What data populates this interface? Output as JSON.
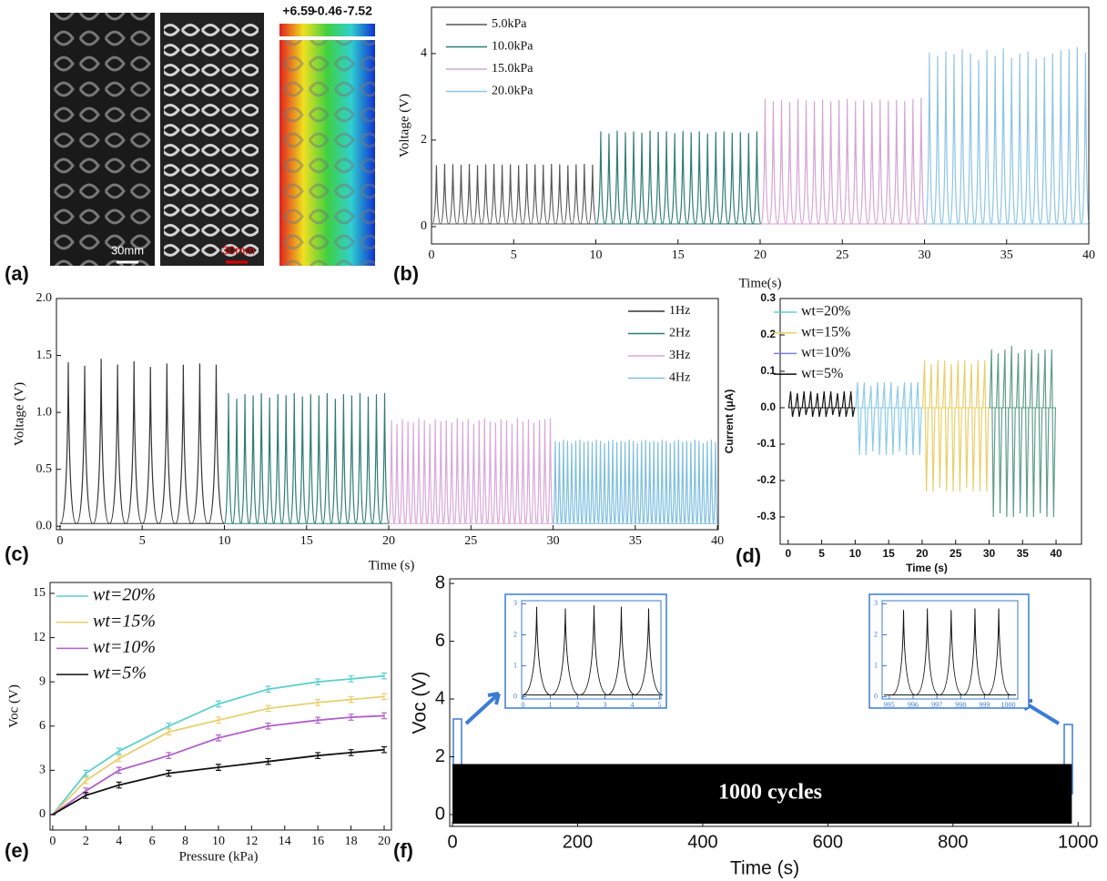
{
  "panel_a": {
    "label": "(a)",
    "scale_bars": [
      "30mm",
      "30mm"
    ],
    "colorbar_labels": [
      "+6.59",
      "-0.46",
      "-7.52"
    ]
  },
  "chart_data": [
    {
      "type": "spike",
      "panel_label": "(b)",
      "x_label": "Time(s)",
      "y_label": "Voltage (V)",
      "xlim": [
        0,
        40
      ],
      "ylim": [
        -0.4,
        5.07
      ],
      "xticks": [
        0,
        5,
        10,
        15,
        20,
        25,
        30,
        35,
        40
      ],
      "yticks": [
        0,
        2,
        4
      ],
      "series": [
        {
          "name": "5.0kPa",
          "color": "#555555",
          "x": [
            0.3,
            0.8,
            1.3,
            1.8,
            2.3,
            2.8,
            3.3,
            3.8,
            4.3,
            4.8,
            5.3,
            5.8,
            6.3,
            6.8,
            7.3,
            7.8,
            8.3,
            8.8,
            9.3,
            9.8
          ],
          "values": [
            1.42,
            1.45,
            1.44,
            1.43,
            1.45,
            1.42,
            1.44,
            1.45,
            1.43,
            1.44,
            1.42,
            1.45,
            1.44,
            1.43,
            1.45,
            1.44,
            1.42,
            1.44,
            1.45,
            1.43
          ]
        },
        {
          "name": "10.0kPa",
          "color": "#2e7d73",
          "x": [
            10.3,
            10.8,
            11.3,
            11.8,
            12.3,
            12.8,
            13.3,
            13.8,
            14.3,
            14.8,
            15.3,
            15.8,
            16.3,
            16.8,
            17.3,
            17.8,
            18.3,
            18.8,
            19.3,
            19.8
          ],
          "values": [
            2.2,
            2.15,
            2.22,
            2.18,
            2.2,
            2.17,
            2.22,
            2.19,
            2.2,
            2.16,
            2.21,
            2.18,
            2.2,
            2.15,
            2.19,
            2.2,
            2.17,
            2.18,
            2.16,
            2.2
          ]
        },
        {
          "name": "15.0kPa",
          "color": "#d4a5d4",
          "x": [
            20.3,
            20.8,
            21.3,
            21.8,
            22.3,
            22.8,
            23.3,
            23.8,
            24.3,
            24.8,
            25.3,
            25.8,
            26.3,
            26.8,
            27.3,
            27.8,
            28.3,
            28.8,
            29.3,
            29.8
          ],
          "values": [
            2.95,
            2.9,
            2.93,
            2.88,
            2.95,
            2.92,
            2.9,
            2.94,
            2.89,
            2.93,
            2.95,
            2.9,
            2.92,
            2.88,
            2.94,
            2.91,
            2.93,
            2.9,
            2.95,
            2.98
          ]
        },
        {
          "name": "20.0kPa",
          "color": "#8ec5e5",
          "x": [
            30.3,
            30.8,
            31.3,
            31.8,
            32.3,
            32.8,
            33.3,
            33.8,
            34.3,
            34.8,
            35.3,
            35.8,
            36.3,
            36.8,
            37.3,
            37.8,
            38.3,
            38.8,
            39.3,
            39.8
          ],
          "values": [
            4.02,
            3.95,
            4.05,
            3.98,
            4.1,
            4.0,
            3.85,
            4.08,
            3.95,
            4.12,
            3.9,
            4.0,
            4.05,
            3.88,
            3.92,
            4.0,
            4.08,
            4.1,
            4.15,
            4.02
          ]
        }
      ]
    },
    {
      "type": "spike",
      "panel_label": "(c)",
      "x_label": "Time (s)",
      "y_label": "Voltage (V)",
      "xlim": [
        -0.22,
        40.05
      ],
      "ylim": [
        -0.03,
        2.0
      ],
      "xticks": [
        0,
        5,
        10,
        15,
        20,
        25,
        30,
        35,
        40
      ],
      "yticks": [
        {
          "value": 0,
          "label": "0.0"
        },
        0.5,
        {
          "value": 1,
          "label": "1.0"
        },
        1.5,
        {
          "value": 2,
          "label": "2.0"
        }
      ],
      "series": [
        {
          "name": "1Hz",
          "color": "#333333",
          "x": [
            0.5,
            1.5,
            2.5,
            3.5,
            4.5,
            5.5,
            6.5,
            7.5,
            8.5,
            9.5
          ],
          "values": [
            1.44,
            1.41,
            1.47,
            1.42,
            1.45,
            1.4,
            1.43,
            1.42,
            1.43,
            1.42
          ]
        },
        {
          "name": "2Hz",
          "color": "#2e7d73",
          "x": [
            10.25,
            10.75,
            11.25,
            11.75,
            12.25,
            12.75,
            13.25,
            13.75,
            14.25,
            14.75,
            15.25,
            15.75,
            16.25,
            16.75,
            17.25,
            17.75,
            18.25,
            18.75,
            19.25,
            19.75
          ],
          "values": [
            1.17,
            1.12,
            1.16,
            1.15,
            1.17,
            1.13,
            1.16,
            1.15,
            1.17,
            1.14,
            1.16,
            1.15,
            1.17,
            1.12,
            1.16,
            1.15,
            1.17,
            1.14,
            1.16,
            1.17
          ]
        },
        {
          "name": "3Hz",
          "color": "#d9a8d9",
          "x": [
            20.17,
            20.5,
            20.83,
            21.17,
            21.5,
            21.83,
            22.17,
            22.5,
            22.83,
            23.17,
            23.5,
            23.83,
            24.17,
            24.5,
            24.83,
            25.17,
            25.5,
            25.83,
            26.17,
            26.5,
            26.83,
            27.17,
            27.5,
            27.83,
            28.17,
            28.5,
            28.83,
            29.17,
            29.5,
            29.83
          ],
          "values": [
            0.93,
            0.9,
            0.94,
            0.92,
            0.91,
            0.95,
            0.93,
            0.9,
            0.94,
            0.92,
            0.93,
            0.91,
            0.95,
            0.92,
            0.94,
            0.9,
            0.93,
            0.95,
            0.92,
            0.91,
            0.94,
            0.93,
            0.9,
            0.95,
            0.92,
            0.94,
            0.91,
            0.93,
            0.94,
            0.95
          ]
        },
        {
          "name": "4Hz",
          "color": "#7fbfe0",
          "x": [
            30.13,
            30.38,
            30.63,
            30.88,
            31.13,
            31.38,
            31.63,
            31.88,
            32.13,
            32.38,
            32.63,
            32.88,
            33.13,
            33.38,
            33.63,
            33.88,
            34.13,
            34.38,
            34.63,
            34.88,
            35.13,
            35.38,
            35.63,
            35.88,
            36.13,
            36.38,
            36.63,
            36.88,
            37.13,
            37.38,
            37.63,
            37.88,
            38.13,
            38.38,
            38.63,
            38.88,
            39.13,
            39.38,
            39.63,
            39.88
          ],
          "values": [
            0.75,
            0.74,
            0.76,
            0.75,
            0.73,
            0.75,
            0.76,
            0.74,
            0.75,
            0.74,
            0.76,
            0.75,
            0.73,
            0.75,
            0.76,
            0.74,
            0.75,
            0.74,
            0.76,
            0.75,
            0.73,
            0.75,
            0.76,
            0.74,
            0.75,
            0.74,
            0.76,
            0.75,
            0.73,
            0.75,
            0.76,
            0.74,
            0.75,
            0.74,
            0.76,
            0.75,
            0.73,
            0.75,
            0.76,
            0.74
          ]
        }
      ]
    },
    {
      "type": "spike",
      "panel_label": "(d)",
      "x_label": "Time (s)",
      "y_label": "Current (μA)",
      "xlim": [
        -1.2,
        43.8
      ],
      "ylim": [
        -0.375,
        0.3
      ],
      "xticks": [
        0,
        5,
        10,
        15,
        20,
        25,
        30,
        35,
        40
      ],
      "yticks": [
        -0.3,
        -0.2,
        -0.1,
        {
          "value": 0,
          "label": "0.0"
        },
        0.1,
        0.2,
        0.3
      ],
      "series": [
        {
          "name": "wt=20%",
          "color": "#5fd0d0",
          "plot_color": "#5f9e8a",
          "x": [
            30.5,
            31.5,
            32.5,
            33.5,
            34.5,
            35.5,
            36.5,
            37.5,
            38.5,
            39.5
          ],
          "values": [
            0.16,
            0.15,
            0.16,
            0.17,
            0.15,
            0.16,
            0.16,
            0.15,
            0.16,
            0.16
          ],
          "min_values": [
            -0.3,
            -0.29,
            -0.3,
            -0.3,
            -0.29,
            -0.3,
            -0.3,
            -0.29,
            -0.3,
            -0.3
          ]
        },
        {
          "name": "wt=15%",
          "color": "#e8cf6a",
          "plot_color": "#e8cf6a",
          "x": [
            20.5,
            21.5,
            22.5,
            23.5,
            24.5,
            25.5,
            26.5,
            27.5,
            28.5,
            29.5
          ],
          "values": [
            0.13,
            0.12,
            0.13,
            0.13,
            0.12,
            0.13,
            0.13,
            0.12,
            0.13,
            0.13
          ],
          "min_values": [
            -0.23,
            -0.23,
            -0.22,
            -0.23,
            -0.23,
            -0.23,
            -0.22,
            -0.23,
            -0.23,
            -0.23
          ]
        },
        {
          "name": "wt=10%",
          "color": "#8080d8",
          "plot_color": "#8ccbe8",
          "x": [
            10.5,
            11.5,
            12.5,
            13.5,
            14.5,
            15.5,
            16.5,
            17.5,
            18.5,
            19.5
          ],
          "values": [
            0.07,
            0.07,
            0.06,
            0.07,
            0.07,
            0.07,
            0.06,
            0.07,
            0.07,
            0.07
          ],
          "min_values": [
            -0.13,
            -0.13,
            -0.12,
            -0.13,
            -0.13,
            -0.13,
            -0.12,
            -0.13,
            -0.13,
            -0.13
          ]
        },
        {
          "name": "wt=5%",
          "color": "#111111",
          "plot_color": "#111111",
          "x": [
            0.5,
            1.5,
            2.5,
            3.5,
            4.5,
            5.5,
            6.5,
            7.5,
            8.5,
            9.5
          ],
          "values": [
            0.045,
            0.04,
            0.045,
            0.045,
            0.04,
            0.045,
            0.045,
            0.04,
            0.045,
            0.045
          ],
          "min_values": [
            -0.025,
            -0.025,
            -0.02,
            -0.025,
            -0.025,
            -0.025,
            -0.02,
            -0.025,
            -0.025,
            -0.025
          ]
        }
      ]
    },
    {
      "type": "line",
      "panel_label": "(e)",
      "x_label": "Pressure (kPa)",
      "y_label": "Voc (V)",
      "xlim": [
        -0.16,
        20.44
      ],
      "ylim": [
        -1.05,
        15.74
      ],
      "xticks": [
        0,
        2,
        4,
        6,
        8,
        10,
        12,
        14,
        16,
        18,
        20
      ],
      "yticks": [
        0,
        3,
        6,
        9,
        12,
        15
      ],
      "series": [
        {
          "name": "wt=20%",
          "color": "#5fcfcf",
          "x": [
            0,
            2,
            4,
            7,
            10,
            13,
            16,
            18,
            20
          ],
          "values": [
            0,
            2.8,
            4.3,
            6.0,
            7.5,
            8.5,
            9.0,
            9.2,
            9.4
          ],
          "errors": [
            0,
            0.2,
            0.2,
            0.2,
            0.2,
            0.2,
            0.2,
            0.2,
            0.2
          ]
        },
        {
          "name": "wt=15%",
          "color": "#e8d070",
          "x": [
            0,
            2,
            4,
            7,
            10,
            13,
            16,
            18,
            20
          ],
          "values": [
            0,
            2.3,
            3.8,
            5.6,
            6.4,
            7.2,
            7.6,
            7.8,
            8.0
          ],
          "errors": [
            0,
            0.2,
            0.2,
            0.2,
            0.2,
            0.2,
            0.2,
            0.2,
            0.2
          ]
        },
        {
          "name": "wt=10%",
          "color": "#b060c8",
          "x": [
            0,
            2,
            4,
            7,
            10,
            13,
            16,
            18,
            20
          ],
          "values": [
            0,
            1.6,
            3.0,
            4.0,
            5.2,
            6.0,
            6.4,
            6.6,
            6.7
          ],
          "errors": [
            0,
            0.2,
            0.2,
            0.2,
            0.2,
            0.2,
            0.2,
            0.2,
            0.2
          ]
        },
        {
          "name": "wt=5%",
          "color": "#111111",
          "x": [
            0,
            2,
            4,
            7,
            10,
            13,
            16,
            18,
            20
          ],
          "values": [
            0,
            1.3,
            2.0,
            2.8,
            3.2,
            3.6,
            4.0,
            4.2,
            4.4
          ],
          "errors": [
            0,
            0.2,
            0.2,
            0.2,
            0.2,
            0.2,
            0.2,
            0.2,
            0.2
          ]
        }
      ]
    },
    {
      "type": "area",
      "panel_label": "(f)",
      "x_label": "Time (s)",
      "y_label": "Voc (V)",
      "annotation": "1000 cycles",
      "xlim": [
        -4.4,
        1020
      ],
      "ylim": [
        -0.41,
        8.16
      ],
      "xticks": [
        0,
        200,
        400,
        600,
        800,
        1000
      ],
      "yticks": [
        0,
        2,
        4,
        6,
        8
      ],
      "series": [
        {
          "color": "#000000",
          "x": [
            0,
            990
          ],
          "values": [
            1.75,
            1.75
          ]
        }
      ],
      "insets": [
        {
          "xlim": [
            -0.05,
            5.05
          ],
          "ylim": [
            -0.07,
            3.1
          ],
          "xticks": [
            0,
            1,
            2,
            3,
            4,
            5
          ],
          "yticks": [
            0,
            1,
            2,
            3
          ],
          "x": [
            0.5,
            1.55,
            2.6,
            3.6,
            4.6
          ],
          "values": [
            2.9,
            2.85,
            2.95,
            2.9,
            2.85
          ]
        },
        {
          "xlim": [
            994.7,
            1000.4
          ],
          "ylim": [
            -0.07,
            3.1
          ],
          "xticks": [
            995,
            996,
            997,
            998,
            999,
            1000
          ],
          "yticks": [
            0,
            1,
            2,
            3
          ],
          "x": [
            995.6,
            996.6,
            997.6,
            998.6,
            999.6
          ],
          "values": [
            2.8,
            2.85,
            2.8,
            2.85,
            2.85
          ]
        }
      ]
    }
  ]
}
